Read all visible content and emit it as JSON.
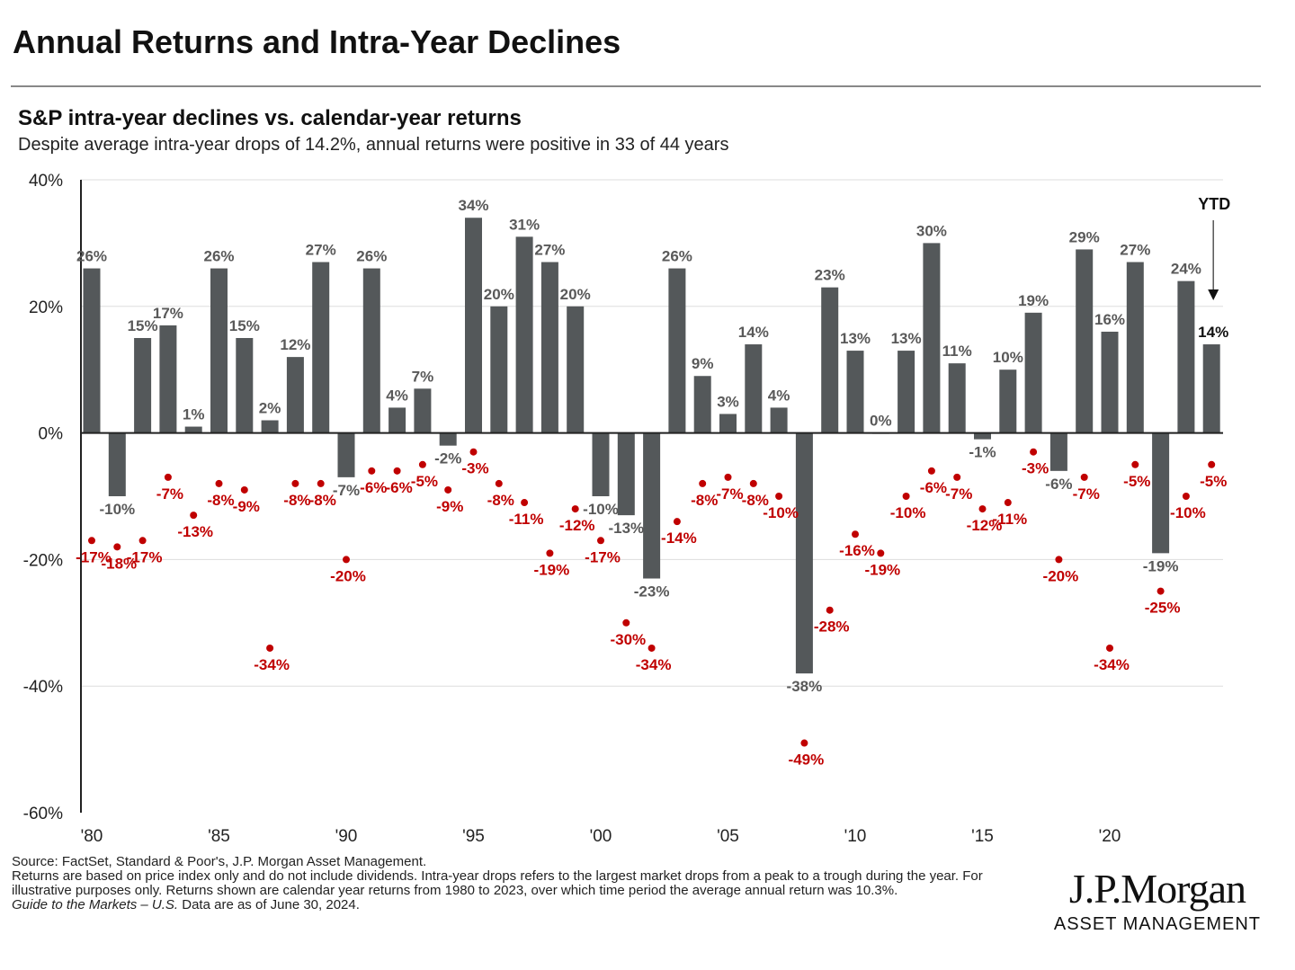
{
  "title": "Annual Returns and Intra-Year Declines",
  "subtitle": "S&P intra-year declines vs. calendar-year returns",
  "description": "Despite average intra-year drops of 14.2%, annual returns were positive in 33 of 44 years",
  "footer": {
    "source": "Source: FactSet, Standard & Poor's, J.P. Morgan Asset Management.",
    "note": "Returns are based on price index only and do not include dividends. Intra-year drops refers to the largest market drops from a peak to a trough during the year. For illustrative purposes only. Returns shown are calendar year returns from 1980 to 2023, over which time period the average annual return was 10.3%.",
    "guide": "Guide to the Markets – U.S.",
    "asof": " Data are as of June 30, 2024."
  },
  "logo": {
    "name": "J.P.Morgan",
    "sub": "ASSET MANAGEMENT"
  },
  "chart_data": {
    "type": "bar",
    "ylim": [
      -60,
      40
    ],
    "yticks": [
      40,
      20,
      0,
      -20,
      -40,
      -60
    ],
    "ytick_labels": [
      "40%",
      "20%",
      "0%",
      "-20%",
      "-40%",
      "-60%"
    ],
    "xtick_labels": [
      "'80",
      "'85",
      "'90",
      "'95",
      "'00",
      "'05",
      "'10",
      "'15",
      "'20"
    ],
    "grid": true,
    "annotation": "YTD",
    "colors": {
      "bars": "#54585a",
      "declines": "#c00000",
      "bar_labels": "#595959"
    },
    "years": [
      1980,
      1981,
      1982,
      1983,
      1984,
      1985,
      1986,
      1987,
      1988,
      1989,
      1990,
      1991,
      1992,
      1993,
      1994,
      1995,
      1996,
      1997,
      1998,
      1999,
      2000,
      2001,
      2002,
      2003,
      2004,
      2005,
      2006,
      2007,
      2008,
      2009,
      2010,
      2011,
      2012,
      2013,
      2014,
      2015,
      2016,
      2017,
      2018,
      2019,
      2020,
      2021,
      2022,
      2023,
      2024
    ],
    "series": [
      {
        "kind": "bar",
        "values": [
          26,
          -10,
          15,
          17,
          1,
          26,
          15,
          2,
          12,
          27,
          -7,
          26,
          4,
          7,
          -2,
          34,
          20,
          31,
          27,
          20,
          -10,
          -13,
          -23,
          26,
          9,
          3,
          14,
          4,
          -38,
          23,
          13,
          0,
          13,
          30,
          11,
          -1,
          10,
          19,
          -6,
          29,
          16,
          27,
          -19,
          24,
          14
        ]
      },
      {
        "kind": "scatter",
        "values": [
          -17,
          -18,
          -17,
          -7,
          -13,
          -8,
          -9,
          -34,
          -8,
          -8,
          -20,
          -6,
          -6,
          -5,
          -9,
          -3,
          -8,
          -11,
          -19,
          -12,
          -17,
          -30,
          -34,
          -14,
          -8,
          -7,
          -8,
          -10,
          -49,
          -28,
          -16,
          -19,
          -10,
          -6,
          -7,
          -12,
          -11,
          -3,
          -20,
          -7,
          -34,
          -5,
          -25,
          -10,
          -5
        ]
      }
    ]
  }
}
